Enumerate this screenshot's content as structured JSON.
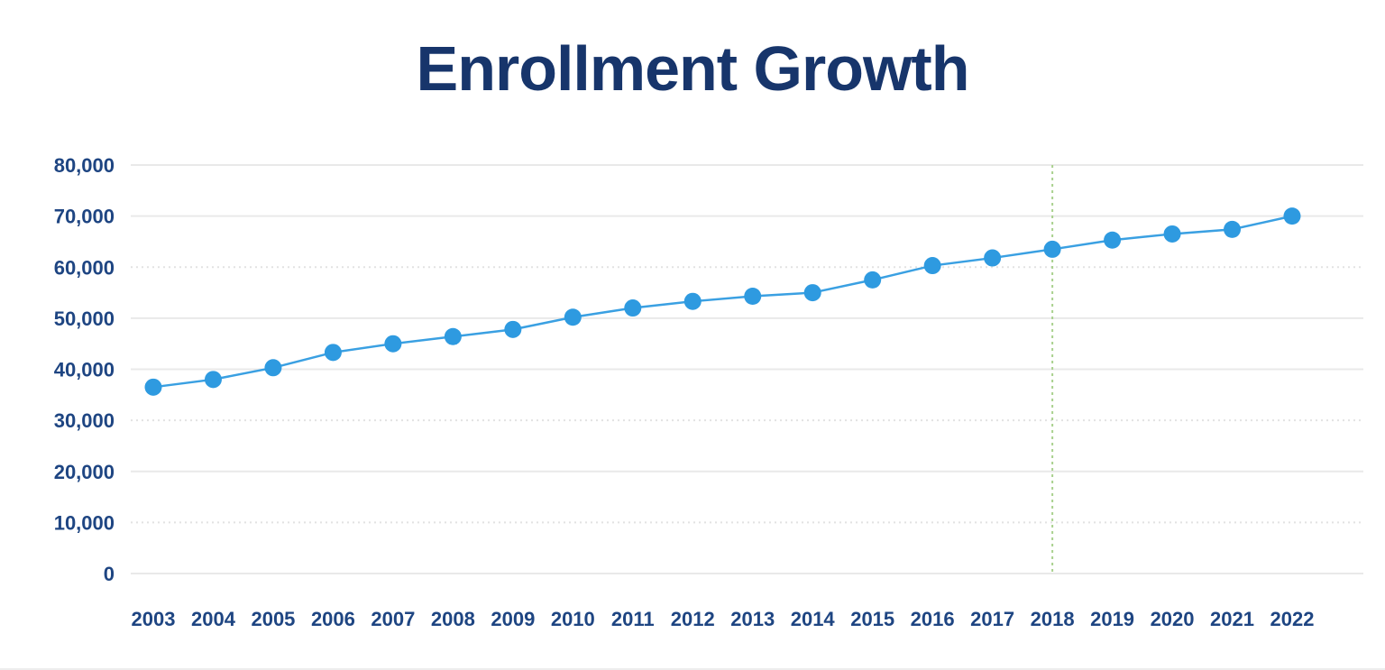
{
  "chart_data": {
    "type": "line",
    "title": "Enrollment Growth",
    "xlabel": "",
    "ylabel": "",
    "legend": "none",
    "grid": "horizontal",
    "ylim": [
      0,
      80000
    ],
    "x": [
      "2003",
      "2004",
      "2005",
      "2006",
      "2007",
      "2008",
      "2009",
      "2010",
      "2011",
      "2012",
      "2013",
      "2014",
      "2015",
      "2016",
      "2017",
      "2018",
      "2019",
      "2020",
      "2021",
      "2022"
    ],
    "series": [
      {
        "name": "Enrollment",
        "values": [
          36500,
          38000,
          40300,
          43300,
          45000,
          46400,
          47800,
          50200,
          52000,
          53300,
          54300,
          55000,
          57500,
          60300,
          61800,
          63500,
          65300,
          66500,
          67400,
          70000
        ]
      }
    ],
    "yticks": [
      {
        "value": 80000,
        "label": "80,000",
        "style": "solid"
      },
      {
        "value": 70000,
        "label": "70,000",
        "style": "solid"
      },
      {
        "value": 60000,
        "label": "60,000",
        "style": "dotted"
      },
      {
        "value": 50000,
        "label": "50,000",
        "style": "solid"
      },
      {
        "value": 40000,
        "label": "40,000",
        "style": "solid"
      },
      {
        "value": 30000,
        "label": "30,000",
        "style": "dotted"
      },
      {
        "value": 20000,
        "label": "20,000",
        "style": "solid"
      },
      {
        "value": 10000,
        "label": "10,000",
        "style": "dotted"
      },
      {
        "value": 0,
        "label": "0",
        "style": "solid"
      }
    ],
    "annotations": [
      {
        "type": "vline",
        "x": "2018",
        "style": "dotted",
        "color": "#a9d18e"
      }
    ],
    "colors": {
      "background": "#ffffff",
      "title": "#17356b",
      "axis_labels": "#1e4582",
      "line": "#3aa0e2",
      "marker": "#2e9ae0",
      "grid": "#e9e9e9",
      "grid_dotted": "#e2e2e2",
      "reference_line": "#a9d18e"
    }
  }
}
